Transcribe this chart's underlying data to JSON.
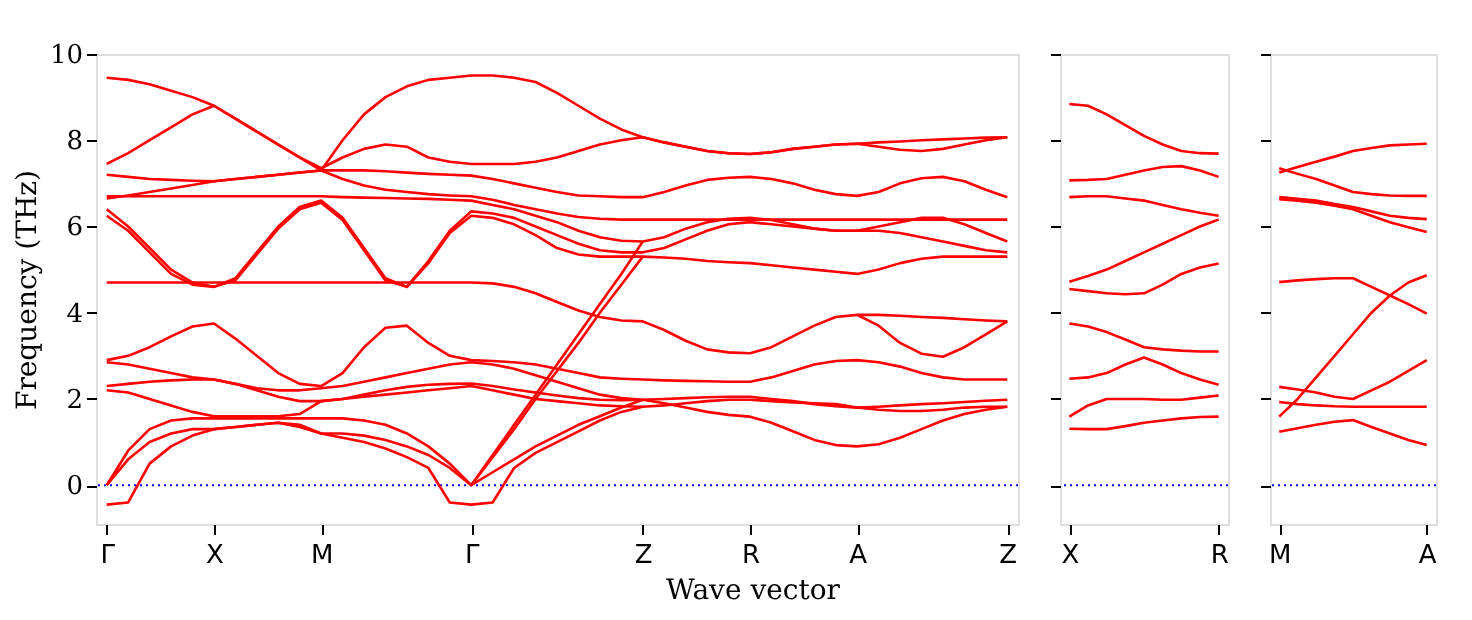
{
  "chart_data": [
    {
      "type": "line",
      "xlabel": "Wave vector",
      "ylabel": "Frequency (THz)",
      "ylim": [
        -0.9,
        10
      ],
      "categories": [
        "Γ",
        null,
        null,
        null,
        null,
        "X",
        null,
        null,
        null,
        null,
        "M",
        null,
        null,
        null,
        null,
        null,
        null,
        "Γ",
        null,
        null,
        null,
        null,
        null,
        null,
        null,
        "Z",
        null,
        null,
        null,
        null,
        "R",
        null,
        null,
        null,
        null,
        "A",
        null,
        null,
        null,
        null,
        null,
        null,
        "Z"
      ],
      "yticks": [
        0,
        2,
        4,
        6,
        8,
        10
      ],
      "grid": false,
      "marker": "none",
      "line_style": "solid",
      "ref_lines": [
        {
          "axis": "y",
          "value": 0,
          "color": "#0000ff",
          "line_style": "dotted"
        }
      ],
      "series": [
        {
          "color": "#ff0000",
          "values": [
            9.45,
            9.4,
            9.3,
            9.15,
            9.0,
            8.8,
            8.5,
            8.2,
            7.9,
            7.6,
            7.3,
            8.0,
            8.6,
            9.0,
            9.25,
            9.4,
            9.45,
            9.5,
            9.5,
            9.45,
            9.35,
            9.1,
            8.8,
            8.5,
            8.25,
            8.07,
            7.95,
            7.85,
            7.75,
            7.7,
            7.68,
            7.72,
            7.8,
            7.85,
            7.9,
            7.92,
            7.95,
            7.97,
            8.0,
            8.02,
            8.04,
            8.06,
            8.07
          ]
        },
        {
          "color": "#ff0000",
          "values": [
            7.45,
            7.7,
            8.0,
            8.3,
            8.6,
            8.8,
            8.5,
            8.2,
            7.9,
            7.6,
            7.35,
            7.6,
            7.8,
            7.9,
            7.85,
            7.6,
            7.5,
            7.45,
            7.45,
            7.45,
            7.5,
            7.6,
            7.75,
            7.9,
            8.0,
            8.07,
            7.95,
            7.85,
            7.75,
            7.7,
            7.68,
            7.72,
            7.8,
            7.85,
            7.9,
            7.92,
            7.85,
            7.78,
            7.75,
            7.8,
            7.9,
            8.0,
            8.07
          ]
        },
        {
          "color": "#ff0000",
          "values": [
            7.2,
            7.15,
            7.1,
            7.08,
            7.06,
            7.05,
            7.1,
            7.15,
            7.2,
            7.25,
            7.3,
            7.3,
            7.3,
            7.28,
            7.25,
            7.22,
            7.2,
            7.18,
            7.1,
            7.0,
            6.9,
            6.8,
            6.72,
            6.7,
            6.68,
            6.68,
            6.8,
            6.95,
            7.08,
            7.13,
            7.15,
            7.1,
            7.0,
            6.85,
            6.75,
            6.71,
            6.8,
            7.0,
            7.12,
            7.15,
            7.05,
            6.85,
            6.68
          ]
        },
        {
          "color": "#ff0000",
          "values": [
            6.65,
            6.72,
            6.8,
            6.88,
            6.96,
            7.05,
            7.1,
            7.15,
            7.2,
            7.25,
            7.3,
            7.1,
            6.95,
            6.85,
            6.8,
            6.75,
            6.72,
            6.7,
            6.62,
            6.5,
            6.4,
            6.3,
            6.22,
            6.18,
            6.16,
            6.16,
            6.16,
            6.16,
            6.16,
            6.16,
            6.16,
            6.16,
            6.16,
            6.16,
            6.16,
            6.16,
            6.16,
            6.16,
            6.16,
            6.16,
            6.16,
            6.16,
            6.16
          ]
        },
        {
          "color": "#ff0000",
          "values": [
            6.7,
            6.7,
            6.7,
            6.7,
            6.7,
            6.7,
            6.7,
            6.7,
            6.7,
            6.7,
            6.7,
            6.68,
            6.67,
            6.66,
            6.65,
            6.64,
            6.62,
            6.6,
            6.5,
            6.4,
            6.25,
            6.1,
            5.9,
            5.75,
            5.67,
            5.65,
            5.75,
            5.95,
            6.1,
            6.18,
            6.2,
            6.15,
            6.05,
            5.95,
            5.9,
            5.9,
            6.0,
            6.1,
            6.2,
            6.2,
            6.05,
            5.85,
            5.65
          ]
        },
        {
          "color": "#ff0000",
          "values": [
            6.4,
            6.0,
            5.5,
            5.0,
            4.7,
            4.6,
            4.8,
            5.4,
            6.0,
            6.45,
            6.6,
            6.2,
            5.5,
            4.8,
            4.6,
            5.2,
            5.9,
            6.35,
            6.3,
            6.2,
            6.0,
            5.8,
            5.6,
            5.45,
            5.4,
            5.4,
            5.5,
            5.7,
            5.9,
            6.05,
            6.1,
            6.05,
            6.0,
            5.95,
            5.9,
            5.9,
            5.9,
            5.85,
            5.75,
            5.65,
            5.55,
            5.45,
            5.4
          ]
        },
        {
          "color": "#ff0000",
          "values": [
            6.25,
            5.9,
            5.4,
            4.9,
            4.65,
            4.6,
            4.75,
            5.35,
            5.95,
            6.4,
            6.55,
            6.15,
            5.45,
            4.75,
            4.6,
            5.15,
            5.85,
            6.25,
            6.2,
            6.05,
            5.8,
            5.5,
            5.35,
            5.3,
            5.3,
            5.3,
            5.28,
            5.25,
            5.2,
            5.17,
            5.15,
            5.1,
            5.05,
            5.0,
            4.95,
            4.9,
            5.0,
            5.15,
            5.25,
            5.3,
            5.3,
            5.3,
            5.3
          ]
        },
        {
          "color": "#ff0000",
          "values": [
            4.7,
            4.7,
            4.7,
            4.7,
            4.7,
            4.7,
            4.7,
            4.7,
            4.7,
            4.7,
            4.7,
            4.7,
            4.7,
            4.7,
            4.7,
            4.7,
            4.7,
            4.7,
            4.68,
            4.6,
            4.45,
            4.25,
            4.05,
            3.9,
            3.82,
            3.8,
            3.6,
            3.35,
            3.15,
            3.08,
            3.06,
            3.2,
            3.45,
            3.7,
            3.9,
            3.95,
            3.95,
            3.93,
            3.9,
            3.88,
            3.85,
            3.82,
            3.8
          ]
        },
        {
          "color": "#ff0000",
          "values": [
            null,
            null,
            null,
            null,
            null,
            null,
            null,
            null,
            null,
            null,
            null,
            null,
            null,
            null,
            null,
            null,
            null,
            null,
            null,
            null,
            null,
            null,
            null,
            null,
            null,
            null,
            null,
            null,
            null,
            null,
            null,
            null,
            null,
            null,
            null,
            3.95,
            3.7,
            3.3,
            3.05,
            2.98,
            3.2,
            3.5,
            3.8
          ]
        },
        {
          "color": "#ff0000",
          "values": [
            2.9,
            3.0,
            3.2,
            3.45,
            3.68,
            3.75,
            3.4,
            3.0,
            2.6,
            2.35,
            2.3,
            2.6,
            3.2,
            3.65,
            3.7,
            3.3,
            3.0,
            2.9,
            2.88,
            2.85,
            2.8,
            2.7,
            2.6,
            2.5,
            2.47,
            2.45,
            2.43,
            2.42,
            2.41,
            2.4,
            2.4,
            2.5,
            2.65,
            2.8,
            2.88,
            2.9,
            2.85,
            2.75,
            2.6,
            2.5,
            2.45,
            2.45,
            2.45
          ]
        },
        {
          "color": "#ff0000",
          "values": [
            2.85,
            2.8,
            2.7,
            2.6,
            2.5,
            2.45,
            2.35,
            2.25,
            2.2,
            2.2,
            2.25,
            2.3,
            2.4,
            2.5,
            2.6,
            2.7,
            2.8,
            2.85,
            2.8,
            2.7,
            2.55,
            2.4,
            2.25,
            2.1,
            2.02,
            1.98,
            2.0,
            2.02,
            2.04,
            2.05,
            2.05,
            2.0,
            1.95,
            1.88,
            1.83,
            1.8,
            1.82,
            1.85,
            1.88,
            1.9,
            1.93,
            1.96,
            1.98
          ]
        },
        {
          "color": "#ff0000",
          "values": [
            2.3,
            2.35,
            2.4,
            2.43,
            2.45,
            2.45,
            2.35,
            2.2,
            2.05,
            1.95,
            1.95,
            2.0,
            2.1,
            2.2,
            2.28,
            2.33,
            2.35,
            2.36,
            2.3,
            2.22,
            2.15,
            2.08,
            2.02,
            1.98,
            1.97,
            1.98,
            1.9,
            1.8,
            1.7,
            1.63,
            1.59,
            1.45,
            1.25,
            1.05,
            0.93,
            0.9,
            0.95,
            1.1,
            1.3,
            1.5,
            1.65,
            1.75,
            1.82
          ]
        },
        {
          "color": "#ff0000",
          "values": [
            2.2,
            2.15,
            2.0,
            1.85,
            1.7,
            1.6,
            1.6,
            1.6,
            1.6,
            1.65,
            1.95,
            2.0,
            2.05,
            2.1,
            2.15,
            2.2,
            2.25,
            2.3,
            2.2,
            2.1,
            2.0,
            1.95,
            1.9,
            1.85,
            1.83,
            1.82,
            1.85,
            1.9,
            1.95,
            1.98,
            1.98,
            1.95,
            1.92,
            1.9,
            1.88,
            1.8,
            1.75,
            1.72,
            1.72,
            1.75,
            1.8,
            1.82,
            1.82
          ]
        },
        {
          "color": "#ff0000",
          "values": [
            0,
            0.8,
            1.3,
            1.5,
            1.55,
            1.55,
            1.55,
            1.55,
            1.55,
            1.55,
            1.55,
            1.55,
            1.5,
            1.4,
            1.2,
            0.9,
            0.5,
            0,
            0.7,
            1.4,
            2.1,
            2.8,
            3.5,
            4.2,
            4.9,
            5.65,
            null,
            null,
            null,
            null,
            null,
            null,
            null,
            null,
            null,
            null,
            null,
            null,
            null,
            null,
            null,
            null,
            null
          ]
        },
        {
          "color": "#ff0000",
          "values": [
            0,
            0.6,
            1.0,
            1.2,
            1.3,
            1.3,
            1.35,
            1.4,
            1.45,
            1.35,
            1.2,
            1.2,
            1.15,
            1.05,
            0.9,
            0.7,
            0.4,
            0,
            0.65,
            1.3,
            2.0,
            2.65,
            3.3,
            4.0,
            4.65,
            5.3,
            null,
            null,
            null,
            null,
            null,
            null,
            null,
            null,
            null,
            null,
            null,
            null,
            null,
            null,
            null,
            null,
            null
          ]
        },
        {
          "color": "#ff0000",
          "values": [
            -0.45,
            -0.4,
            0.5,
            0.9,
            1.15,
            1.3,
            1.35,
            1.4,
            1.45,
            1.4,
            1.2,
            1.1,
            1.0,
            0.85,
            0.65,
            0.4,
            -0.4,
            -0.45,
            -0.4,
            0.4,
            0.75,
            1.0,
            1.25,
            1.5,
            1.7,
            1.82,
            null,
            null,
            null,
            null,
            null,
            null,
            null,
            null,
            null,
            null,
            null,
            null,
            null,
            null,
            null,
            null,
            null
          ]
        },
        {
          "color": "#ff0000",
          "values": [
            null,
            null,
            null,
            null,
            null,
            null,
            null,
            null,
            null,
            null,
            null,
            null,
            null,
            null,
            null,
            null,
            null,
            0,
            0.3,
            0.6,
            0.9,
            1.15,
            1.4,
            1.6,
            1.8,
            1.98,
            null,
            null,
            null,
            null,
            null,
            null,
            null,
            null,
            null,
            null,
            null,
            null,
            null,
            null,
            null,
            null,
            null
          ]
        }
      ]
    },
    {
      "type": "line",
      "ylim": [
        -0.9,
        10
      ],
      "categories": [
        "X",
        null,
        null,
        null,
        null,
        null,
        null,
        null,
        "R"
      ],
      "yticks": [
        0,
        2,
        4,
        6,
        8,
        10
      ],
      "tick_labels": "x",
      "grid": false,
      "marker": "none",
      "line_style": "solid",
      "ref_lines": [
        {
          "axis": "y",
          "value": 0,
          "color": "#0000ff",
          "line_style": "dotted"
        }
      ],
      "series": [
        {
          "color": "#ff0000",
          "values": [
            8.84,
            8.8,
            8.6,
            8.35,
            8.1,
            7.9,
            7.75,
            7.7,
            7.69
          ]
        },
        {
          "color": "#ff0000",
          "values": [
            7.07,
            7.08,
            7.1,
            7.2,
            7.3,
            7.38,
            7.4,
            7.3,
            7.15
          ]
        },
        {
          "color": "#ff0000",
          "values": [
            6.68,
            6.7,
            6.7,
            6.65,
            6.6,
            6.5,
            6.4,
            6.32,
            6.25
          ]
        },
        {
          "color": "#ff0000",
          "values": [
            4.72,
            4.85,
            5.0,
            5.2,
            5.4,
            5.6,
            5.8,
            6.0,
            6.16
          ]
        },
        {
          "color": "#ff0000",
          "values": [
            4.55,
            4.5,
            4.45,
            4.43,
            4.45,
            4.65,
            4.9,
            5.05,
            5.14
          ]
        },
        {
          "color": "#ff0000",
          "values": [
            3.75,
            3.68,
            3.55,
            3.38,
            3.2,
            3.15,
            3.12,
            3.1,
            3.1
          ]
        },
        {
          "color": "#ff0000",
          "values": [
            2.47,
            2.5,
            2.6,
            2.8,
            2.96,
            2.8,
            2.6,
            2.45,
            2.33
          ]
        },
        {
          "color": "#ff0000",
          "values": [
            1.59,
            1.85,
            2.0,
            2.0,
            2.0,
            1.98,
            1.98,
            2.03,
            2.08
          ]
        },
        {
          "color": "#ff0000",
          "values": [
            1.31,
            1.3,
            1.3,
            1.37,
            1.45,
            1.5,
            1.55,
            1.58,
            1.59
          ]
        }
      ]
    },
    {
      "type": "line",
      "ylim": [
        -0.9,
        10
      ],
      "categories": [
        "M",
        null,
        null,
        null,
        null,
        null,
        null,
        null,
        "A"
      ],
      "yticks": [
        0,
        2,
        4,
        6,
        8,
        10
      ],
      "tick_labels": "x",
      "grid": false,
      "marker": "none",
      "line_style": "solid",
      "ref_lines": [
        {
          "axis": "y",
          "value": 0,
          "color": "#0000ff",
          "line_style": "dotted"
        }
      ],
      "series": [
        {
          "color": "#ff0000",
          "values": [
            7.25,
            7.38,
            7.5,
            7.62,
            7.75,
            7.82,
            7.88,
            7.9,
            7.92
          ]
        },
        {
          "color": "#ff0000",
          "values": [
            7.35,
            7.22,
            7.1,
            6.95,
            6.8,
            6.75,
            6.72,
            6.71,
            6.71
          ]
        },
        {
          "color": "#ff0000",
          "values": [
            6.68,
            6.64,
            6.6,
            6.52,
            6.45,
            6.35,
            6.25,
            6.2,
            6.17
          ]
        },
        {
          "color": "#ff0000",
          "values": [
            6.63,
            6.6,
            6.55,
            6.48,
            6.4,
            6.25,
            6.1,
            5.98,
            5.87
          ]
        },
        {
          "color": "#ff0000",
          "values": [
            4.71,
            4.75,
            4.78,
            4.8,
            4.8,
            4.6,
            4.4,
            4.2,
            3.98
          ]
        },
        {
          "color": "#ff0000",
          "values": [
            1.59,
            2.0,
            2.5,
            3.0,
            3.5,
            4.0,
            4.4,
            4.7,
            4.87
          ]
        },
        {
          "color": "#ff0000",
          "values": [
            2.28,
            2.22,
            2.15,
            2.05,
            2.0,
            2.2,
            2.4,
            2.65,
            2.9
          ]
        },
        {
          "color": "#ff0000",
          "values": [
            1.93,
            1.88,
            1.85,
            1.83,
            1.82,
            1.82,
            1.82,
            1.82,
            1.82
          ]
        },
        {
          "color": "#ff0000",
          "values": [
            1.24,
            1.32,
            1.4,
            1.47,
            1.51,
            1.35,
            1.2,
            1.05,
            0.93
          ]
        }
      ]
    }
  ]
}
